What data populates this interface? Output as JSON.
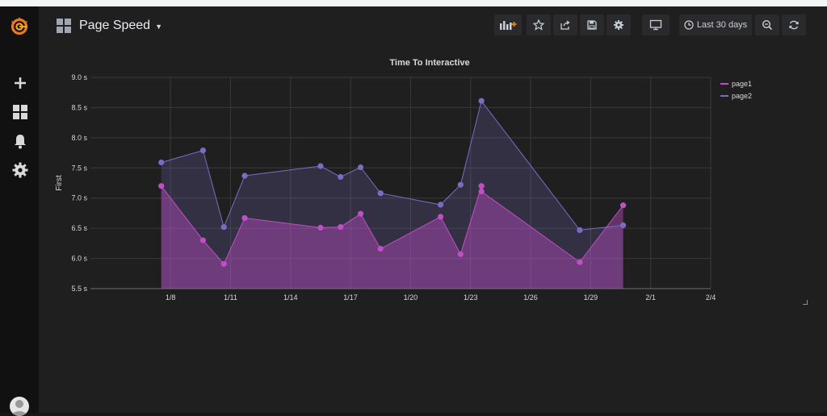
{
  "sidebar": {
    "logo_icon": "grafana-logo-icon",
    "items": [
      {
        "name": "create",
        "icon": "plus-icon"
      },
      {
        "name": "dashboards",
        "icon": "dashboards-grid-icon"
      },
      {
        "name": "alerting",
        "icon": "bell-icon"
      },
      {
        "name": "configuration",
        "icon": "gear-icon"
      }
    ],
    "avatar_icon": "user-avatar-icon"
  },
  "header": {
    "title": "Page Speed",
    "time_range": "Last 30 days",
    "buttons": [
      {
        "name": "add-panel",
        "icon": "add-panel-icon"
      },
      {
        "name": "star",
        "icon": "star-icon"
      },
      {
        "name": "share",
        "icon": "share-icon"
      },
      {
        "name": "save",
        "icon": "save-icon"
      },
      {
        "name": "settings",
        "icon": "gear-icon"
      },
      {
        "name": "cycle-view-mode",
        "icon": "monitor-icon"
      },
      {
        "name": "time-picker",
        "icon": "clock-icon"
      },
      {
        "name": "zoom-out",
        "icon": "zoom-out-icon"
      },
      {
        "name": "refresh",
        "icon": "refresh-icon"
      }
    ]
  },
  "panel": {
    "title": "Time To Interactive"
  },
  "colors": {
    "page1": "#c04fc6",
    "page2": "#7b6cc2",
    "accent": "#eb7b18"
  },
  "chart_data": {
    "type": "area",
    "title": "Time To Interactive",
    "xlabel": "",
    "ylabel": "First",
    "x_unit": "date",
    "x_ticks": [
      "1/8",
      "1/11",
      "1/14",
      "1/17",
      "1/20",
      "1/23",
      "1/26",
      "1/29",
      "2/1",
      "2/4"
    ],
    "y_ticks": [
      "5.5 s",
      "6.0 s",
      "6.5 s",
      "7.0 s",
      "7.5 s",
      "8.0 s",
      "8.5 s",
      "9.0 s"
    ],
    "ylim": [
      5.5,
      9.0
    ],
    "xlim": [
      "2019-01-04",
      "2019-02-04"
    ],
    "grid": true,
    "legend_position": "top-right",
    "series": [
      {
        "name": "page1",
        "color": "#c04fc6",
        "points": [
          [
            "2019-01-07T13:00",
            7.2
          ],
          [
            "2019-01-09T15:00",
            6.3
          ],
          [
            "2019-01-10T16:00",
            5.91
          ],
          [
            "2019-01-11T17:00",
            6.67
          ],
          [
            "2019-01-15T12:00",
            6.51
          ],
          [
            "2019-01-16T12:00",
            6.52
          ],
          [
            "2019-01-17T12:00",
            6.74
          ],
          [
            "2019-01-18T12:00",
            6.16
          ],
          [
            "2019-01-21T12:00",
            6.69
          ],
          [
            "2019-01-22T12:00",
            6.07
          ],
          [
            "2019-01-23T13:00",
            7.2
          ],
          [
            "2019-01-23T13:05",
            7.11
          ],
          [
            "2019-01-28T11:00",
            5.94
          ],
          [
            "2019-01-30T15:00",
            6.88
          ]
        ]
      },
      {
        "name": "page2",
        "color": "#7b6cc2",
        "points": [
          [
            "2019-01-07T13:00",
            7.59
          ],
          [
            "2019-01-09T15:00",
            7.79
          ],
          [
            "2019-01-10T16:00",
            6.52
          ],
          [
            "2019-01-11T17:00",
            7.37
          ],
          [
            "2019-01-15T12:00",
            7.53
          ],
          [
            "2019-01-16T12:00",
            7.35
          ],
          [
            "2019-01-17T12:00",
            7.51
          ],
          [
            "2019-01-18T12:00",
            7.08
          ],
          [
            "2019-01-21T12:00",
            6.89
          ],
          [
            "2019-01-22T12:00",
            7.22
          ],
          [
            "2019-01-23T13:00",
            8.61
          ],
          [
            "2019-01-28T11:00",
            6.47
          ],
          [
            "2019-01-30T15:00",
            6.55
          ]
        ]
      }
    ]
  }
}
